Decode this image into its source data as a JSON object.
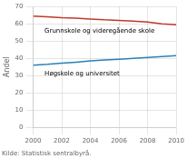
{
  "chart_data": {
    "type": "line",
    "x": [
      2000,
      2001,
      2002,
      2003,
      2004,
      2005,
      2006,
      2007,
      2008,
      2009,
      2010
    ],
    "series": [
      {
        "name": "Grunnskole",
        "color": "#c0392b",
        "values": [
          64.5,
          64.0,
          63.5,
          63.2,
          62.8,
          62.3,
          62.0,
          61.5,
          61.0,
          60.0,
          59.5
        ]
      },
      {
        "name": "Høgskole",
        "color": "#2980b9",
        "values": [
          36.0,
          36.5,
          37.2,
          37.8,
          38.5,
          39.0,
          39.5,
          40.0,
          40.5,
          41.0,
          41.5
        ]
      }
    ],
    "ylabel": "Andel",
    "xlim": [
      2000,
      2010
    ],
    "ylim": [
      0,
      70
    ],
    "xticks": [
      2000,
      2002,
      2004,
      2006,
      2008,
      2010
    ],
    "yticks": [
      0,
      10,
      20,
      30,
      40,
      50,
      60,
      70
    ],
    "grid": true,
    "legend": false,
    "annotations": [
      {
        "text": "Grunnskole og videregående skole",
        "x": 2000.8,
        "y": 57.5
      },
      {
        "text": "Høgskole og universitet",
        "x": 2000.8,
        "y": 33.0
      }
    ],
    "source": "Kilde: Statistisk sentralbyrå."
  }
}
